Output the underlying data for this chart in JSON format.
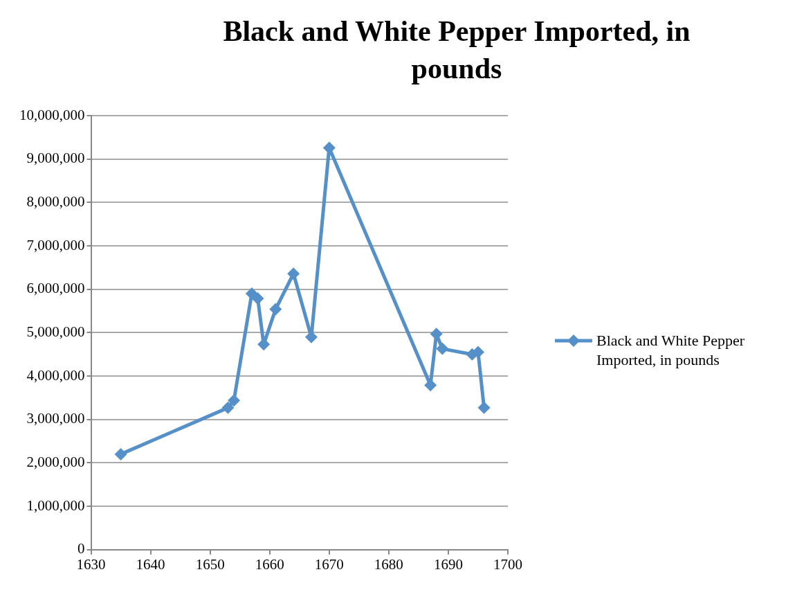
{
  "chart_data": {
    "type": "line",
    "title": "Black and White Pepper Imported, in pounds",
    "series": [
      {
        "name": "Black and White Pepper Imported, in pounds",
        "color": "#5690c8",
        "x": [
          1635,
          1653,
          1654,
          1657,
          1658,
          1659,
          1661,
          1664,
          1667,
          1670,
          1687,
          1688,
          1689,
          1694,
          1695,
          1696
        ],
        "values": [
          2200000,
          3270000,
          3440000,
          5900000,
          5790000,
          4730000,
          5540000,
          6360000,
          4900000,
          9260000,
          3790000,
          4970000,
          4630000,
          4500000,
          4550000,
          3270000
        ]
      }
    ],
    "xlim": [
      1630,
      1700
    ],
    "xticks": [
      1630,
      1640,
      1650,
      1660,
      1670,
      1680,
      1690,
      1700
    ],
    "ylim": [
      0,
      10000000
    ],
    "yticks": [
      0,
      {
        "value": 1000000,
        "label": "1,000,000"
      },
      {
        "value": 2000000,
        "label": "2,000,000"
      },
      {
        "value": 3000000,
        "label": "3,000,000"
      },
      {
        "value": 4000000,
        "label": "4,000,000"
      },
      {
        "value": 5000000,
        "label": "5,000,000"
      },
      {
        "value": 6000000,
        "label": "6,000,000"
      },
      {
        "value": 7000000,
        "label": "7,000,000"
      },
      {
        "value": 8000000,
        "label": "8,000,000"
      },
      {
        "value": 9000000,
        "label": "9,000,000"
      },
      {
        "value": 10000000,
        "label": "10,000,000"
      }
    ],
    "grid": "y",
    "legend": "right",
    "marker": "diamond",
    "line_style": "solid"
  }
}
